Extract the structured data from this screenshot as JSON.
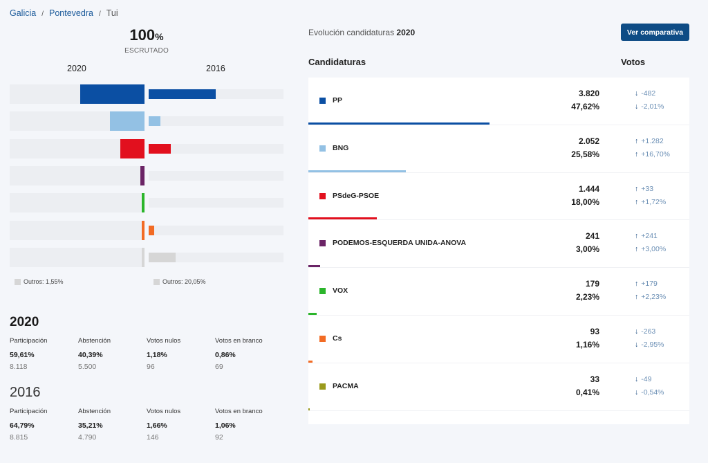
{
  "breadcrumb": [
    "Galicia",
    "Pontevedra",
    "Tui"
  ],
  "escrutado": {
    "value": "100",
    "unit": "%",
    "label": "ESCRUTADO"
  },
  "years": {
    "current": "2020",
    "previous": "2016"
  },
  "chart_data": {
    "type": "bar",
    "orientation": "horizontal-butterfly",
    "categories": [
      "PP",
      "BNG",
      "PSdeG-PSOE",
      "PODEMOS-ESQUERDA UNIDA-ANOVA",
      "VOX",
      "Cs",
      "Outros"
    ],
    "series": [
      {
        "name": "2020",
        "values": [
          47.62,
          25.58,
          18.0,
          3.0,
          2.23,
          1.16,
          1.55
        ]
      },
      {
        "name": "2016",
        "values": [
          49.63,
          8.88,
          16.28,
          0,
          0,
          4.11,
          20.05
        ]
      }
    ],
    "xlim": [
      0,
      100
    ],
    "colors": [
      "#0b4fa3",
      "#93c1e4",
      "#e2101e",
      "#6b2466",
      "#2bb52b",
      "#f26b24",
      "#d6d6d6"
    ]
  },
  "outros": {
    "current": "Outros: 1,55%",
    "previous": "Outros: 20,05%"
  },
  "stats": [
    {
      "year": "2020",
      "items": [
        {
          "label": "Participación",
          "pct": "59,61%",
          "count": "8.118"
        },
        {
          "label": "Abstención",
          "pct": "40,39%",
          "count": "5.500"
        },
        {
          "label": "Votos nulos",
          "pct": "1,18%",
          "count": "96"
        },
        {
          "label": "Votos en branco",
          "pct": "0,86%",
          "count": "69"
        }
      ]
    },
    {
      "year": "2016",
      "items": [
        {
          "label": "Participación",
          "pct": "64,79%",
          "count": "8.815"
        },
        {
          "label": "Abstención",
          "pct": "35,21%",
          "count": "4.790"
        },
        {
          "label": "Votos nulos",
          "pct": "1,66%",
          "count": "146"
        },
        {
          "label": "Votos en branco",
          "pct": "1,06%",
          "count": "92"
        }
      ]
    }
  ],
  "evolution": {
    "title": "Evolución candidaturas",
    "year": "2020",
    "button": "Ver comparativa",
    "col_candidatures": "Candidaturas",
    "col_votes": "Votos"
  },
  "parties": [
    {
      "name": "PP",
      "color": "#0b4fa3",
      "votes": "3.820",
      "pct": "47,62%",
      "pct_value": 47.62,
      "vdiff": "-482",
      "pdiff": "-2,01%",
      "dir": "down"
    },
    {
      "name": "BNG",
      "color": "#93c1e4",
      "votes": "2.052",
      "pct": "25,58%",
      "pct_value": 25.58,
      "vdiff": "+1.282",
      "pdiff": "+16,70%",
      "dir": "up"
    },
    {
      "name": "PSdeG-PSOE",
      "color": "#e2101e",
      "votes": "1.444",
      "pct": "18,00%",
      "pct_value": 18.0,
      "vdiff": "+33",
      "pdiff": "+1,72%",
      "dir": "up"
    },
    {
      "name": "PODEMOS-ESQUERDA UNIDA-ANOVA",
      "color": "#6b2466",
      "votes": "241",
      "pct": "3,00%",
      "pct_value": 3.0,
      "vdiff": "+241",
      "pdiff": "+3,00%",
      "dir": "up"
    },
    {
      "name": "VOX",
      "color": "#2bb52b",
      "votes": "179",
      "pct": "2,23%",
      "pct_value": 2.23,
      "vdiff": "+179",
      "pdiff": "+2,23%",
      "dir": "up"
    },
    {
      "name": "Cs",
      "color": "#f26b24",
      "votes": "93",
      "pct": "1,16%",
      "pct_value": 1.16,
      "vdiff": "-263",
      "pdiff": "-2,95%",
      "dir": "down"
    },
    {
      "name": "PACMA",
      "color": "#9a9a1c",
      "votes": "33",
      "pct": "0,41%",
      "pct_value": 0.41,
      "vdiff": "-49",
      "pdiff": "-0,54%",
      "dir": "down"
    }
  ]
}
